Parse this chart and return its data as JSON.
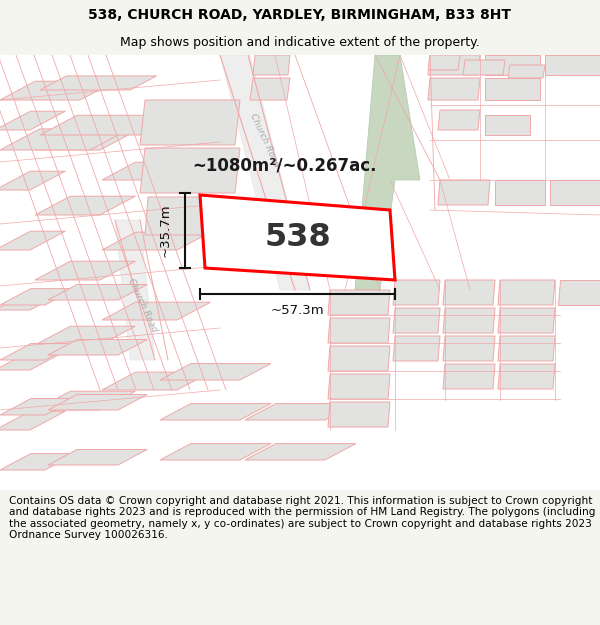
{
  "title_line1": "538, CHURCH ROAD, YARDLEY, BIRMINGHAM, B33 8HT",
  "title_line2": "Map shows position and indicative extent of the property.",
  "footer_text": "Contains OS data © Crown copyright and database right 2021. This information is subject to Crown copyright and database rights 2023 and is reproduced with the permission of HM Land Registry. The polygons (including the associated geometry, namely x, y co-ordinates) are subject to Crown copyright and database rights 2023 Ordnance Survey 100026316.",
  "area_label": "~1080m²/~0.267ac.",
  "number_label": "538",
  "width_label": "~57.3m",
  "height_label": "~35.7m",
  "bg_color": "#f5f5f0",
  "map_bg": "#ffffff",
  "build_fill": "#e2e2e0",
  "road_line_color": "#f0a8a8",
  "subject_edge": "#ff0000",
  "green_color": "#c8d8c0",
  "road_label_color": "#aaaaaa",
  "dim_color": "#111111",
  "number_color": "#333333",
  "area_color": "#1a1a1a"
}
